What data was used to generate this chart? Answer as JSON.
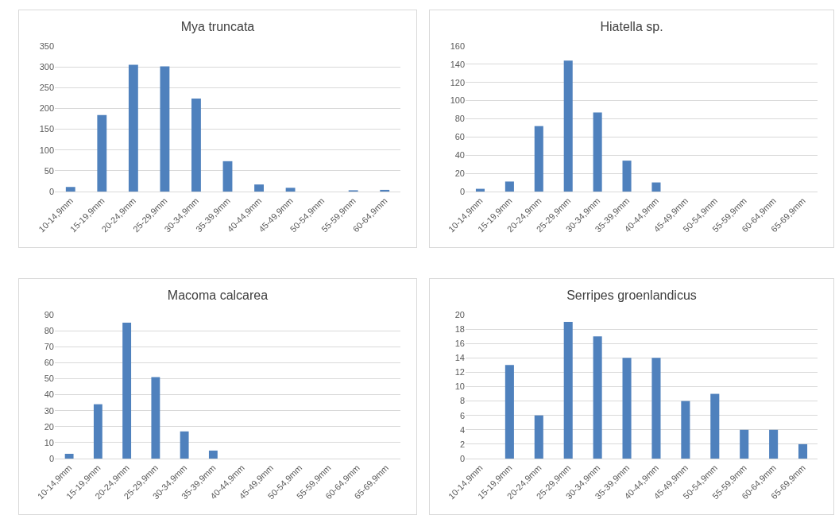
{
  "chart_data": [
    {
      "type": "bar",
      "title": "Mya truncata",
      "categories": [
        "10-14,9mm",
        "15-19,9mm",
        "20-24,9mm",
        "25-29,9mm",
        "30-34,9mm",
        "35-39,9mm",
        "40-44,9mm",
        "45-49,9mm",
        "50-54,9mm",
        "55-59,9mm",
        "60-64,9mm"
      ],
      "values": [
        11,
        184,
        305,
        301,
        224,
        73,
        17,
        9,
        0,
        3,
        4
      ],
      "color": "#4f81bd",
      "ylim": [
        0,
        350
      ],
      "yticks": [
        0,
        50,
        100,
        150,
        200,
        250,
        300,
        350
      ],
      "grid": "y"
    },
    {
      "type": "bar",
      "title": "Hiatella sp.",
      "categories": [
        "10-14,9mm",
        "15-19,9mm",
        "20-24,9mm",
        "25-29,9mm",
        "30-34,9mm",
        "35-39,9mm",
        "40-44,9mm",
        "45-49,9mm",
        "50-54,9mm",
        "55-59,9mm",
        "60-64,9mm",
        "65-69,9mm"
      ],
      "values": [
        3,
        11,
        72,
        144,
        87,
        34,
        10,
        0,
        0,
        0,
        0,
        0
      ],
      "color": "#4f81bd",
      "ylim": [
        0,
        160
      ],
      "yticks": [
        0,
        20,
        40,
        60,
        80,
        100,
        120,
        140,
        160
      ],
      "grid": "y"
    },
    {
      "type": "bar",
      "title": "Macoma calcarea",
      "categories": [
        "10-14,9mm",
        "15-19,9mm",
        "20-24,9mm",
        "25-29,9mm",
        "30-34,9mm",
        "35-39,9mm",
        "40-44,9mm",
        "45-49,9mm",
        "50-54,9mm",
        "55-59,9mm",
        "60-64,9mm",
        "65-69,9mm"
      ],
      "values": [
        3,
        34,
        85,
        51,
        17,
        5,
        0,
        0,
        0,
        0,
        0,
        0
      ],
      "color": "#4f81bd",
      "ylim": [
        0,
        90
      ],
      "yticks": [
        0,
        10,
        20,
        30,
        40,
        50,
        60,
        70,
        80,
        90
      ],
      "grid": "y"
    },
    {
      "type": "bar",
      "title": "Serripes groenlandicus",
      "categories": [
        "10-14,9mm",
        "15-19,9mm",
        "20-24,9mm",
        "25-29,9mm",
        "30-34,9mm",
        "35-39,9mm",
        "40-44,9mm",
        "45-49,9mm",
        "50-54,9mm",
        "55-59,9mm",
        "60-64,9mm",
        "65-69,9mm"
      ],
      "values": [
        0,
        13,
        6,
        19,
        17,
        14,
        14,
        8,
        9,
        4,
        4,
        2
      ],
      "color": "#4f81bd",
      "ylim": [
        0,
        20
      ],
      "yticks": [
        0,
        2,
        4,
        6,
        8,
        10,
        12,
        14,
        16,
        18,
        20
      ],
      "grid": "y"
    }
  ]
}
